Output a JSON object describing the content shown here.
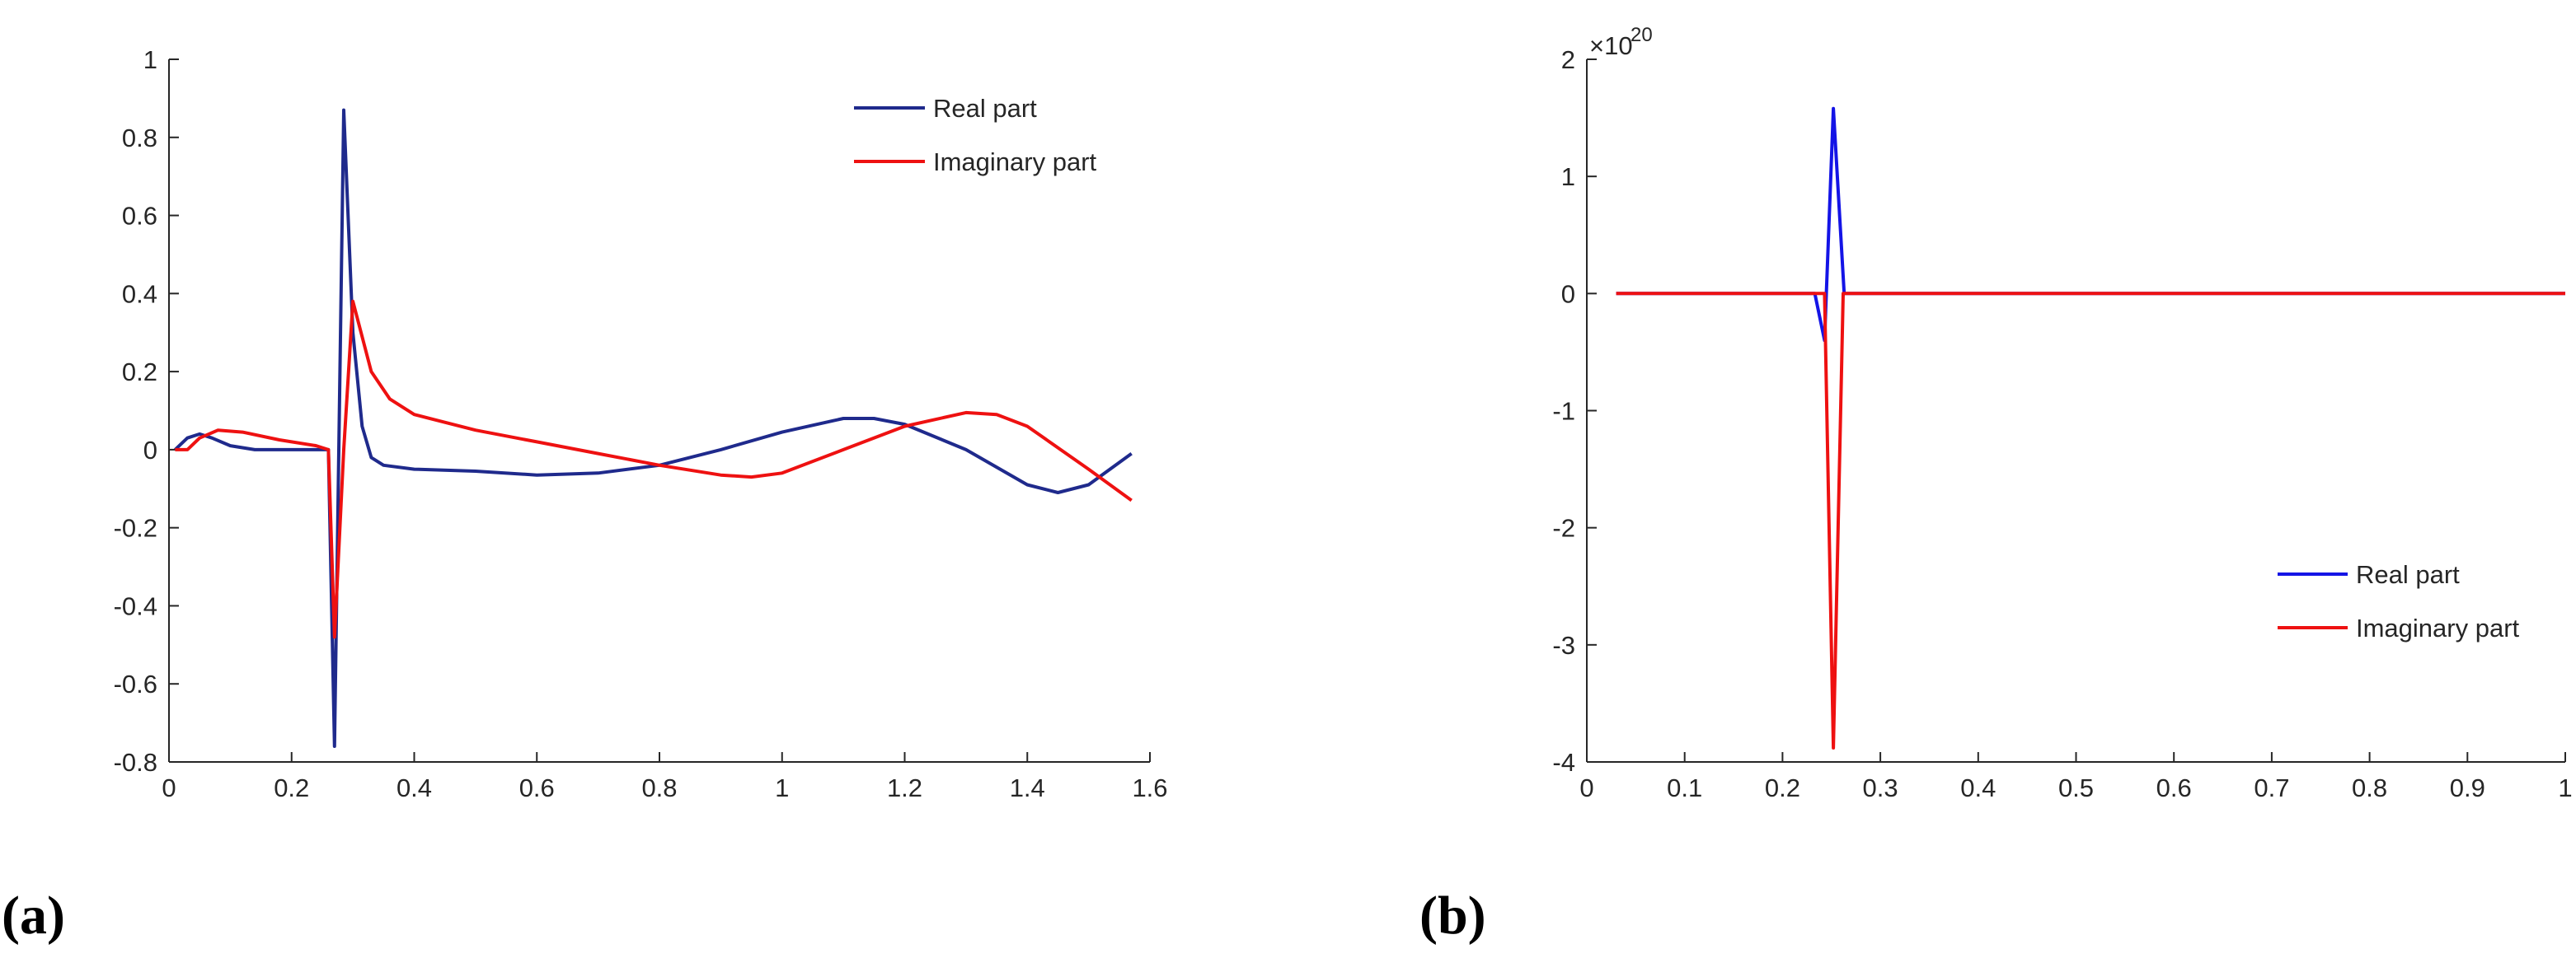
{
  "figure_labels": [
    "(a)",
    "(b)"
  ],
  "colors": {
    "real_a": "#1f2a8c",
    "real_b": "#1414e6",
    "imag": "#ee1111",
    "axis": "#262626"
  },
  "chart_data": [
    {
      "type": "line",
      "panel_label": "(a)",
      "title": "",
      "xlabel": "",
      "ylabel": "",
      "xlim": [
        0,
        1.6
      ],
      "ylim": [
        -0.8,
        1
      ],
      "xticks": [
        0,
        0.2,
        0.4,
        0.6,
        0.8,
        1,
        1.2,
        1.4,
        1.6
      ],
      "xtick_labels": [
        "0",
        "0.2",
        "0.4",
        "0.6",
        "0.8",
        "1",
        "1.2",
        "1.4",
        "1.6"
      ],
      "yticks": [
        -0.8,
        -0.6,
        -0.4,
        -0.2,
        0,
        0.2,
        0.4,
        0.6,
        0.8,
        1
      ],
      "ytick_labels": [
        "-0.8",
        "-0.6",
        "-0.4",
        "-0.2",
        "0",
        "0.2",
        "0.4",
        "0.6",
        "0.8",
        "1"
      ],
      "exponent_label": "",
      "legend_position": "top-right",
      "series": [
        {
          "name": "Real part",
          "color": "#1f2a8c",
          "x": [
            0.01,
            0.03,
            0.05,
            0.07,
            0.1,
            0.14,
            0.2,
            0.25,
            0.26,
            0.27,
            0.285,
            0.3,
            0.315,
            0.33,
            0.35,
            0.4,
            0.5,
            0.6,
            0.7,
            0.8,
            0.9,
            1.0,
            1.1,
            1.15,
            1.2,
            1.3,
            1.4,
            1.45,
            1.5,
            1.57
          ],
          "y": [
            0.0,
            0.03,
            0.04,
            0.03,
            0.01,
            0.0,
            0.0,
            0.0,
            0.0,
            -0.76,
            0.87,
            0.3,
            0.06,
            -0.02,
            -0.04,
            -0.05,
            -0.055,
            -0.065,
            -0.06,
            -0.04,
            0.0,
            0.045,
            0.08,
            0.08,
            0.065,
            0.0,
            -0.09,
            -0.11,
            -0.09,
            -0.01
          ]
        },
        {
          "name": "Imaginary part",
          "color": "#ee1111",
          "x": [
            0.01,
            0.03,
            0.05,
            0.08,
            0.12,
            0.18,
            0.24,
            0.26,
            0.27,
            0.285,
            0.3,
            0.33,
            0.36,
            0.4,
            0.5,
            0.6,
            0.7,
            0.8,
            0.9,
            0.95,
            1.0,
            1.1,
            1.2,
            1.3,
            1.35,
            1.4,
            1.5,
            1.57
          ],
          "y": [
            0.0,
            0.0,
            0.03,
            0.05,
            0.045,
            0.025,
            0.01,
            0.0,
            -0.48,
            0.0,
            0.38,
            0.2,
            0.13,
            0.09,
            0.05,
            0.02,
            -0.01,
            -0.04,
            -0.065,
            -0.07,
            -0.06,
            0.0,
            0.06,
            0.095,
            0.09,
            0.06,
            -0.05,
            -0.13
          ]
        }
      ]
    },
    {
      "type": "line",
      "panel_label": "(b)",
      "title": "",
      "xlabel": "",
      "ylabel": "",
      "xlim": [
        0,
        1
      ],
      "ylim": [
        -4,
        2
      ],
      "xticks": [
        0,
        0.1,
        0.2,
        0.3,
        0.4,
        0.5,
        0.6,
        0.7,
        0.8,
        0.9,
        1
      ],
      "xtick_labels": [
        "0",
        "0.1",
        "0.2",
        "0.3",
        "0.4",
        "0.5",
        "0.6",
        "0.7",
        "0.8",
        "0.9",
        "1"
      ],
      "yticks": [
        -4,
        -3,
        -2,
        -1,
        0,
        1,
        2
      ],
      "ytick_labels": [
        "-4",
        "-3",
        "-2",
        "-1",
        "0",
        "1",
        "2"
      ],
      "exponent_label": "×10",
      "exponent_power": "20",
      "y_scale": "1e20",
      "legend_position": "bottom-right",
      "series": [
        {
          "name": "Real part",
          "color": "#1414e6",
          "x": [
            0.03,
            0.233,
            0.243,
            0.252,
            0.263,
            0.27,
            1.0
          ],
          "y": [
            0,
            0,
            -0.4,
            1.58,
            0,
            0,
            0
          ]
        },
        {
          "name": "Imaginary part",
          "color": "#ee1111",
          "x": [
            0.03,
            0.243,
            0.252,
            0.262,
            0.27,
            1.0
          ],
          "y": [
            0,
            0,
            -3.88,
            0,
            0,
            0
          ]
        }
      ]
    }
  ]
}
